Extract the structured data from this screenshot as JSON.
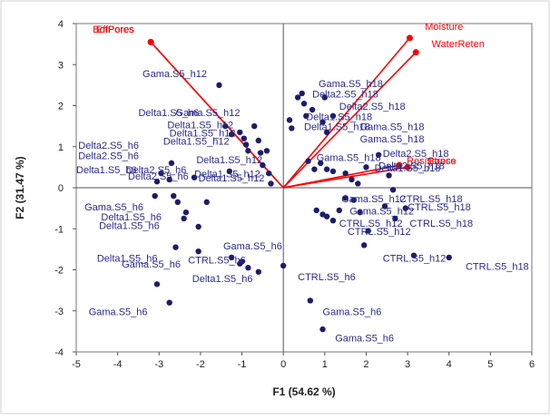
{
  "chart_data": {
    "type": "scatter",
    "title": "",
    "xlabel": "F1 (54.62 %)",
    "ylabel": "F2 (31.47 %)",
    "xlim": [
      -5,
      6
    ],
    "ylim": [
      -4,
      4
    ],
    "xticks": [
      "-5",
      "-4",
      "-3",
      "-2",
      "-1",
      "0",
      "1",
      "2",
      "3",
      "4",
      "5",
      "6"
    ],
    "yticks": [
      "-4",
      "-3",
      "-2",
      "-1",
      "0",
      "1",
      "2",
      "3",
      "4"
    ],
    "grid": false,
    "zero_lines": true,
    "colors": {
      "points": "#1c1c6b",
      "labels": "#2a2a8c",
      "vectors": "#ff0000",
      "axes": "#555555"
    },
    "vectors": [
      {
        "name": "BotPores",
        "x": -3.2,
        "y": 3.55,
        "label_x": -4.6,
        "label_y": 3.78
      },
      {
        "name": "EffPores",
        "x": -3.2,
        "y": 3.55,
        "label_x": -4.52,
        "label_y": 3.78
      },
      {
        "name": "Moisture",
        "x": 3.05,
        "y": 3.65,
        "label_x": 3.42,
        "label_y": 3.85
      },
      {
        "name": "WaterReten",
        "x": 3.2,
        "y": 3.3,
        "label_x": 3.58,
        "label_y": 3.43
      },
      {
        "name": "Resistance",
        "x": 2.8,
        "y": 0.55,
        "label_x": 2.98,
        "label_y": 0.58
      },
      {
        "name": "Stress",
        "x": 3.0,
        "y": 0.5,
        "label_x": 3.48,
        "label_y": 0.58
      }
    ],
    "points": [
      {
        "x": -1.55,
        "y": 2.5
      },
      {
        "x": -1.4,
        "y": 1.5
      },
      {
        "x": -1.25,
        "y": 1.3
      },
      {
        "x": -1.05,
        "y": 1.35
      },
      {
        "x": -0.95,
        "y": 1.2
      },
      {
        "x": -0.9,
        "y": 1.05
      },
      {
        "x": -0.85,
        "y": 0.9
      },
      {
        "x": -0.7,
        "y": 1.5
      },
      {
        "x": -0.6,
        "y": 1.15
      },
      {
        "x": -0.55,
        "y": 0.85
      },
      {
        "x": -0.5,
        "y": 0.55
      },
      {
        "x": -0.4,
        "y": 0.9
      },
      {
        "x": -0.35,
        "y": 0.35
      },
      {
        "x": -0.3,
        "y": 0.1
      },
      {
        "x": -1.3,
        "y": 0.4
      },
      {
        "x": -2.7,
        "y": 0.6
      },
      {
        "x": -2.95,
        "y": 0.35
      },
      {
        "x": -3.05,
        "y": 0.15
      },
      {
        "x": -2.75,
        "y": 0.2
      },
      {
        "x": -2.65,
        "y": -0.2
      },
      {
        "x": -2.55,
        "y": -0.35
      },
      {
        "x": -2.35,
        "y": -0.6
      },
      {
        "x": -2.4,
        "y": -0.75
      },
      {
        "x": -3.1,
        "y": -0.2
      },
      {
        "x": -2.6,
        "y": -1.45
      },
      {
        "x": -2.05,
        "y": -0.95
      },
      {
        "x": -1.85,
        "y": -0.35
      },
      {
        "x": -2.15,
        "y": 0.25
      },
      {
        "x": -2.05,
        "y": -1.55
      },
      {
        "x": -1.25,
        "y": -1.7
      },
      {
        "x": -1.05,
        "y": -1.85
      },
      {
        "x": -0.85,
        "y": -1.95
      },
      {
        "x": -0.6,
        "y": -2.05
      },
      {
        "x": -1.0,
        "y": -1.8
      },
      {
        "x": -3.05,
        "y": -2.35
      },
      {
        "x": -2.75,
        "y": -2.8
      },
      {
        "x": 0.0,
        "y": -1.9
      },
      {
        "x": 0.15,
        "y": 1.65
      },
      {
        "x": 0.2,
        "y": 1.45
      },
      {
        "x": 0.35,
        "y": 2.2
      },
      {
        "x": 0.45,
        "y": 2.3
      },
      {
        "x": 0.5,
        "y": 2.05
      },
      {
        "x": 0.55,
        "y": 1.75
      },
      {
        "x": 0.7,
        "y": 1.9
      },
      {
        "x": 0.95,
        "y": 1.6
      },
      {
        "x": 1.0,
        "y": 2.2
      },
      {
        "x": 1.05,
        "y": 1.35
      },
      {
        "x": 1.2,
        "y": 1.75
      },
      {
        "x": 0.6,
        "y": 0.65
      },
      {
        "x": 0.75,
        "y": 0.45
      },
      {
        "x": 0.9,
        "y": 0.6
      },
      {
        "x": 1.05,
        "y": 0.45
      },
      {
        "x": 1.2,
        "y": 0.4
      },
      {
        "x": 1.5,
        "y": 0.35
      },
      {
        "x": 1.65,
        "y": 0.2
      },
      {
        "x": 1.8,
        "y": 0.1
      },
      {
        "x": 2.0,
        "y": 0.5
      },
      {
        "x": 2.3,
        "y": 0.8
      },
      {
        "x": 2.55,
        "y": 0.3
      },
      {
        "x": 0.8,
        "y": -0.55
      },
      {
        "x": 0.95,
        "y": -0.65
      },
      {
        "x": 1.05,
        "y": -0.7
      },
      {
        "x": 1.2,
        "y": -0.8
      },
      {
        "x": 1.35,
        "y": -0.55
      },
      {
        "x": 1.5,
        "y": -0.25
      },
      {
        "x": 1.7,
        "y": -0.3
      },
      {
        "x": 1.85,
        "y": -0.6
      },
      {
        "x": 2.05,
        "y": -1.05
      },
      {
        "x": 1.95,
        "y": -1.4
      },
      {
        "x": 2.45,
        "y": -0.45
      },
      {
        "x": 2.65,
        "y": -0.05
      },
      {
        "x": 2.7,
        "y": -0.75
      },
      {
        "x": 2.95,
        "y": -0.5
      },
      {
        "x": 3.15,
        "y": -1.65
      },
      {
        "x": 4.0,
        "y": -1.7
      },
      {
        "x": 0.65,
        "y": -2.75
      },
      {
        "x": 0.95,
        "y": -3.45
      }
    ],
    "labels": [
      {
        "text": "Gama.S5_h12",
        "x": -3.4,
        "y": 2.7
      },
      {
        "text": "Delta1.S5_h6",
        "x": -3.5,
        "y": 1.75
      },
      {
        "text": "Gama.S5_h12",
        "x": -2.6,
        "y": 1.75
      },
      {
        "text": "Delta1.S5_h12",
        "x": -2.8,
        "y": 1.45
      },
      {
        "text": "Delta1.S5_h12",
        "x": -2.75,
        "y": 1.25
      },
      {
        "text": "Delta1.S5_h12",
        "x": -2.9,
        "y": 1.05
      },
      {
        "text": "Delta2.S5_h6",
        "x": -4.95,
        "y": 0.95
      },
      {
        "text": "Delta2.S5_h6",
        "x": -4.95,
        "y": 0.7
      },
      {
        "text": "Delta1.S5_h6",
        "x": -5.0,
        "y": 0.35
      },
      {
        "text": "Delta2.S5_h6",
        "x": -3.8,
        "y": 0.35
      },
      {
        "text": "Delta2.S5_h6",
        "x": -3.75,
        "y": 0.2
      },
      {
        "text": "Delta1.S5_h12",
        "x": -2.1,
        "y": 0.6
      },
      {
        "text": "Delta1.S5_h12",
        "x": -2.15,
        "y": 0.25
      },
      {
        "text": "Delta1.S5_h12",
        "x": -2.05,
        "y": 0.15
      },
      {
        "text": "Gama.S5_h6",
        "x": -4.8,
        "y": -0.55
      },
      {
        "text": "Delta1.S5_h6",
        "x": -4.4,
        "y": -0.8
      },
      {
        "text": "Delta1.S5_h6",
        "x": -4.45,
        "y": -1.0
      },
      {
        "text": "Gama.S5_h6",
        "x": -1.45,
        "y": -1.5
      },
      {
        "text": "Delta1.S5_h6",
        "x": -4.5,
        "y": -1.8
      },
      {
        "text": "Gama.S5_h6",
        "x": -3.9,
        "y": -1.95
      },
      {
        "text": "CTRL.S5_h6",
        "x": -2.3,
        "y": -1.85
      },
      {
        "text": "Delta1.S5_h6",
        "x": -2.2,
        "y": -2.3
      },
      {
        "text": "Gama.S5_h6",
        "x": -4.7,
        "y": -3.1
      },
      {
        "text": "Gama.S5_h18",
        "x": 0.85,
        "y": 2.45
      },
      {
        "text": "Delta2.S5_h18",
        "x": 0.7,
        "y": 2.2
      },
      {
        "text": "Delta2.S5_h18",
        "x": 1.35,
        "y": 1.9
      },
      {
        "text": "Delta1.S5_h18",
        "x": 0.55,
        "y": 1.65
      },
      {
        "text": "Delta1.S5_h18",
        "x": 0.5,
        "y": 1.4
      },
      {
        "text": "Gama.S5_h18",
        "x": 1.85,
        "y": 1.4
      },
      {
        "text": "Gama.S5_h18",
        "x": 1.85,
        "y": 1.1
      },
      {
        "text": "Gama.S5_h18",
        "x": 0.8,
        "y": 0.65
      },
      {
        "text": "Delta2.S5_h18",
        "x": 2.4,
        "y": 0.75
      },
      {
        "text": "Delta2.S5_h18",
        "x": 2.3,
        "y": 0.45
      },
      {
        "text": "Delta1.S5_h18",
        "x": 2.2,
        "y": 0.4
      },
      {
        "text": "CTRL.S5_h18",
        "x": 2.8,
        "y": -0.35
      },
      {
        "text": "CTRL.S5_h18",
        "x": 3.0,
        "y": -0.55
      },
      {
        "text": "Gama.S5_h12",
        "x": 1.4,
        "y": -0.35
      },
      {
        "text": "Gama.S5_h12",
        "x": 1.6,
        "y": -0.65
      },
      {
        "text": "CTRL.S5_h12",
        "x": 1.35,
        "y": -0.95
      },
      {
        "text": "CTRL.S5_h12",
        "x": 1.55,
        "y": -1.15
      },
      {
        "text": "CTRL.S5_h18",
        "x": 3.05,
        "y": -0.95
      },
      {
        "text": "CTRL.S5_h12",
        "x": 2.4,
        "y": -1.8
      },
      {
        "text": "CTRL.S5_h18",
        "x": 4.4,
        "y": -2.0
      },
      {
        "text": "CTRL.S5_h6",
        "x": 0.35,
        "y": -2.25
      },
      {
        "text": "Gama.S5_h6",
        "x": 0.95,
        "y": -3.1
      },
      {
        "text": "Gama.S5_h6",
        "x": 1.25,
        "y": -3.75
      }
    ]
  }
}
